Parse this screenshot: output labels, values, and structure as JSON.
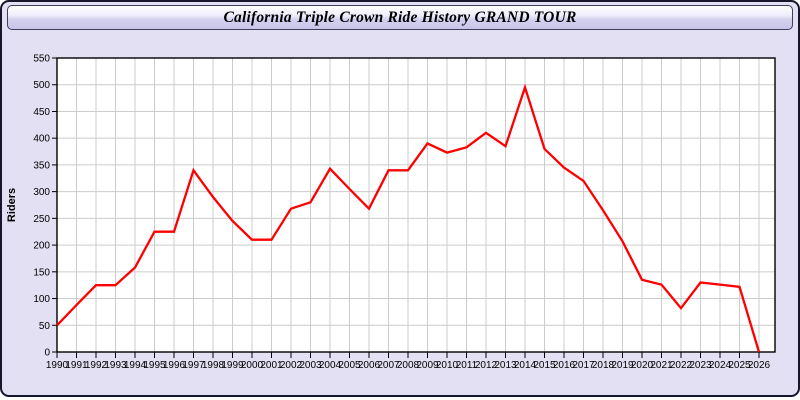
{
  "window": {
    "title": "California Triple Crown Ride History GRAND TOUR"
  },
  "colors": {
    "window_background": "#e2e0f2",
    "banner_gradient_top": "#ffffff",
    "banner_gradient_bottom": "#c8c5e8",
    "plot_background": "#ffffff",
    "grid": "#cccccc",
    "axis_frame": "#000000",
    "line": "#ff0000",
    "text": "#000000"
  },
  "chart_data": {
    "type": "line",
    "title": "California Triple Crown Ride History GRAND TOUR",
    "xlabel": "",
    "ylabel": "Riders",
    "series_name": "Riders",
    "x": [
      1990,
      1991,
      1992,
      1993,
      1994,
      1995,
      1996,
      1997,
      1998,
      1999,
      2000,
      2001,
      2002,
      2003,
      2004,
      2005,
      2006,
      2007,
      2008,
      2009,
      2010,
      2011,
      2012,
      2013,
      2014,
      2015,
      2016,
      2017,
      2018,
      2019,
      2020,
      2021,
      2022,
      2023,
      2024,
      2025,
      2026
    ],
    "values": [
      50,
      88,
      125,
      125,
      158,
      225,
      225,
      340,
      290,
      245,
      210,
      210,
      268,
      280,
      343,
      305,
      268,
      340,
      340,
      390,
      373,
      383,
      410,
      385,
      495,
      380,
      345,
      320,
      265,
      207,
      135,
      126,
      82,
      130,
      126,
      122,
      0
    ],
    "ylim": [
      0,
      550
    ],
    "ytick_step": 50,
    "grid": true,
    "legend": false,
    "line_color": "#ff0000",
    "grid_color": "#cccccc"
  }
}
